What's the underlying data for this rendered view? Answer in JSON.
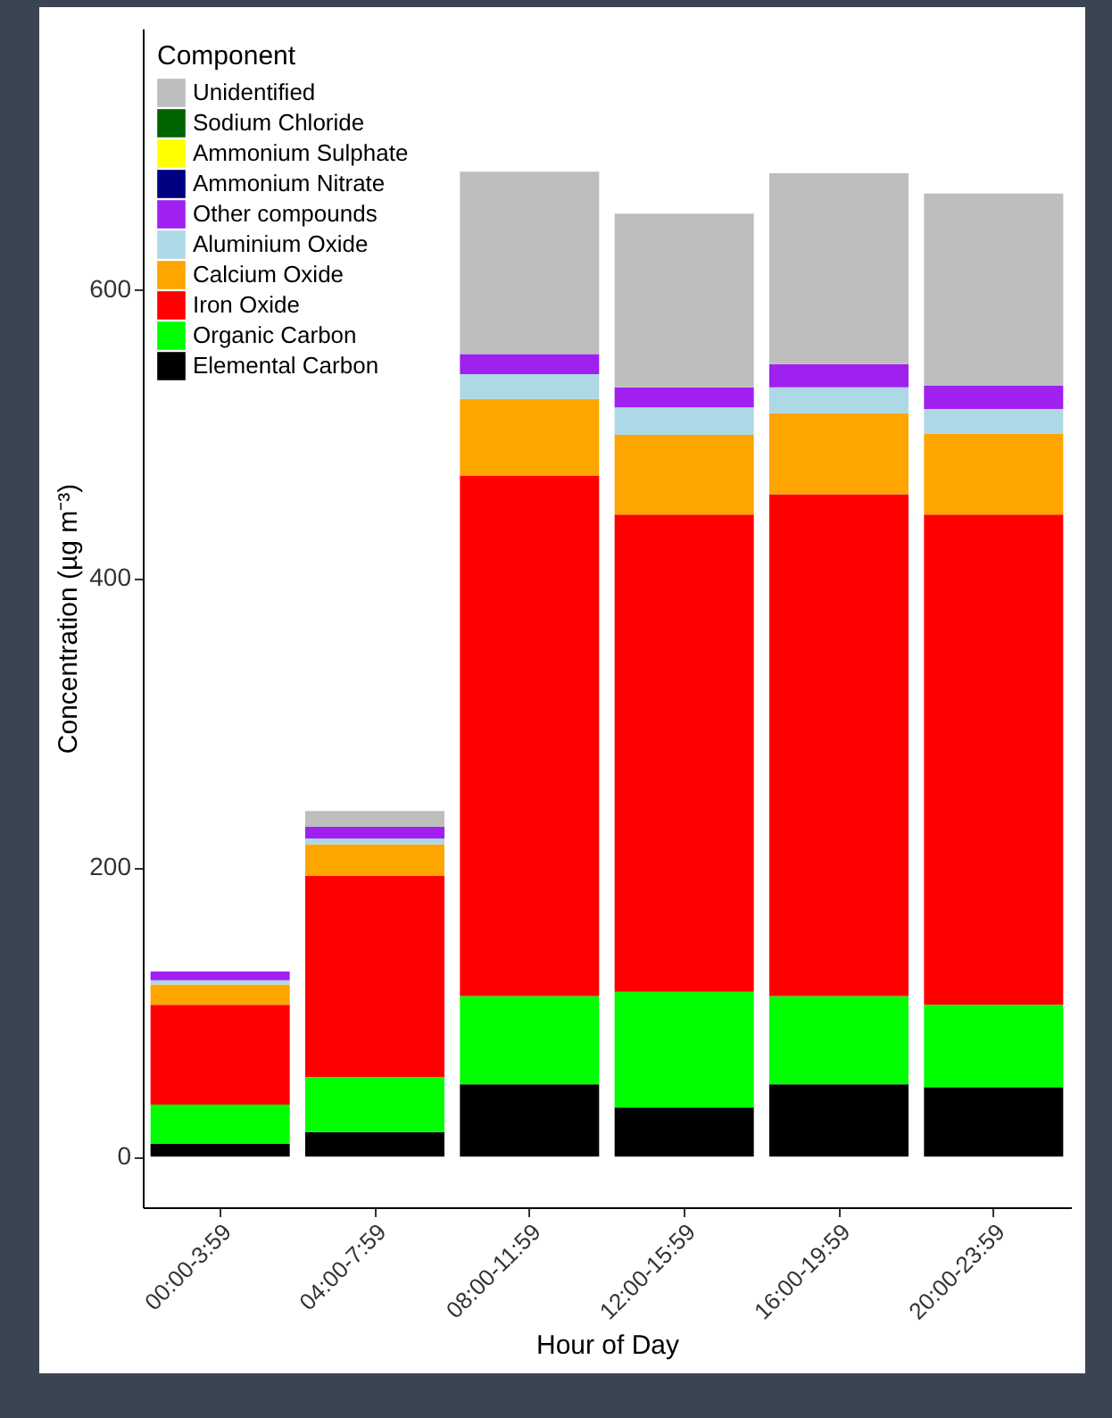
{
  "chart_data": {
    "type": "bar",
    "stacked": true,
    "xlabel": "Hour of Day",
    "ylabel": "Concentration (µg m⁻³)",
    "legend_title": "Component",
    "legend": "top left",
    "grid": false,
    "categories": [
      "00:00-3:59",
      "04:00-7:59",
      "08:00-11:59",
      "12:00-15:59",
      "16:00-19:59",
      "20:00-23:59"
    ],
    "ylim": [
      -35,
      780
    ],
    "yticks": [
      0,
      200,
      400,
      600
    ],
    "series": [
      {
        "name": "Elemental Carbon",
        "color": "#000000",
        "values": [
          9,
          17,
          50,
          34,
          50,
          48
        ]
      },
      {
        "name": "Organic Carbon",
        "color": "#00ff00",
        "values": [
          27,
          38,
          61,
          80,
          61,
          57
        ]
      },
      {
        "name": "Iron Oxide",
        "color": "#ff0000",
        "values": [
          69,
          139,
          360,
          330,
          347,
          339
        ]
      },
      {
        "name": "Calcium Oxide",
        "color": "#ffa500",
        "values": [
          14,
          22,
          53,
          55,
          56,
          56
        ]
      },
      {
        "name": "Aluminium Oxide",
        "color": "#add8e6",
        "values": [
          3,
          4,
          17,
          19,
          18,
          17
        ]
      },
      {
        "name": "Other compounds",
        "color": "#a020f0",
        "values": [
          6,
          8,
          14,
          14,
          16,
          16
        ]
      },
      {
        "name": "Ammonium Nitrate",
        "color": "#000080",
        "values": [
          0,
          0,
          0,
          0,
          0,
          0
        ]
      },
      {
        "name": "Ammonium Sulphate",
        "color": "#ffff00",
        "values": [
          0,
          0,
          0,
          0,
          0,
          0
        ]
      },
      {
        "name": "Sodium Chloride",
        "color": "#006400",
        "values": [
          0,
          0,
          0,
          0,
          0,
          0
        ]
      },
      {
        "name": "Unidentified",
        "color": "#bebebe",
        "values": [
          0,
          11,
          126,
          120,
          132,
          133
        ]
      }
    ]
  }
}
